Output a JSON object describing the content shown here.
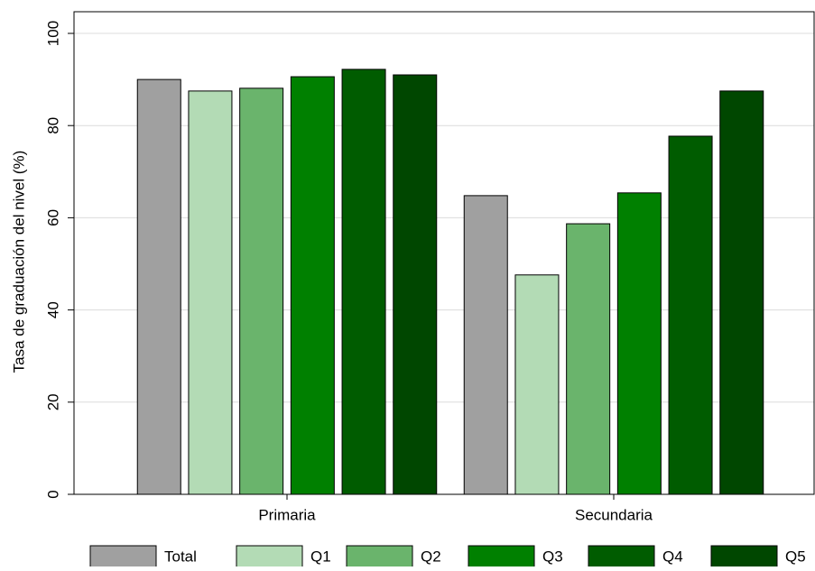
{
  "chart_data": {
    "type": "bar",
    "y_label": "Tasa de graduación del nivel (%)",
    "categories": [
      "Primaria",
      "Secundaria"
    ],
    "series": [
      {
        "name": "Total",
        "color": "#a0a0a0",
        "values": [
          90.0,
          64.8
        ]
      },
      {
        "name": "Q1",
        "color": "#b3dbb5",
        "values": [
          87.5,
          47.6
        ]
      },
      {
        "name": "Q2",
        "color": "#6ab46c",
        "values": [
          88.1,
          58.7
        ]
      },
      {
        "name": "Q3",
        "color": "#008000",
        "values": [
          90.6,
          65.4
        ]
      },
      {
        "name": "Q4",
        "color": "#005c00",
        "values": [
          92.2,
          77.7
        ]
      },
      {
        "name": "Q5",
        "color": "#004700",
        "values": [
          91.0,
          87.5
        ]
      }
    ],
    "ylim": [
      0,
      104.7
    ],
    "yticks": [
      0,
      20,
      40,
      60,
      80,
      100
    ],
    "grid": true
  }
}
